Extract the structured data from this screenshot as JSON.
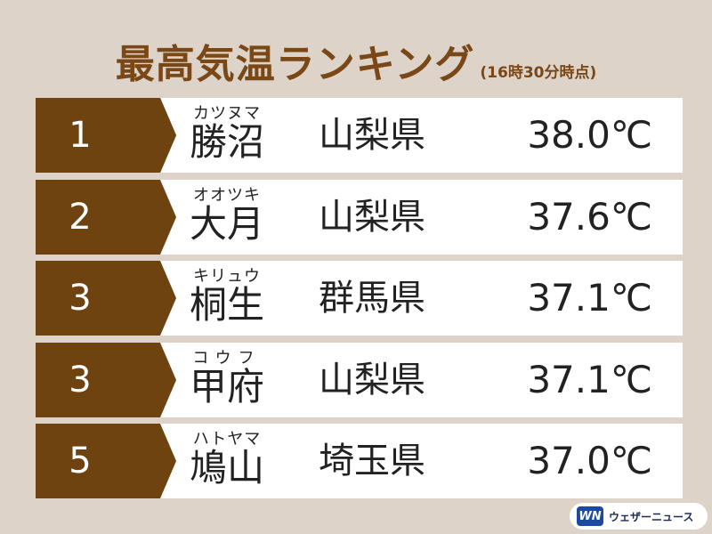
{
  "header": {
    "title": "最高気温ランキング",
    "subtitle": "(16時30分時点)"
  },
  "rows": [
    {
      "rank": "1",
      "reading": "カツヌマ",
      "city": "勝沼",
      "prefecture": "山梨県",
      "temperature": "38.0℃"
    },
    {
      "rank": "2",
      "reading": "オオツキ",
      "city": "大月",
      "prefecture": "山梨県",
      "temperature": "37.6℃"
    },
    {
      "rank": "3",
      "reading": "キリュウ",
      "city": "桐生",
      "prefecture": "群馬県",
      "temperature": "37.1℃"
    },
    {
      "rank": "3",
      "reading": "コウフ",
      "city": "甲府",
      "prefecture": "山梨県",
      "temperature": "37.1℃"
    },
    {
      "rank": "5",
      "reading": "ハトヤマ",
      "city": "鳩山",
      "prefecture": "埼玉県",
      "temperature": "37.0℃"
    }
  ],
  "logo": {
    "mark": "WN",
    "text": "ウェザーニュース"
  },
  "colors": {
    "background": "#ddd3c8",
    "accent": "#6e4310",
    "title": "#7a4716",
    "row": "#ffffff"
  }
}
